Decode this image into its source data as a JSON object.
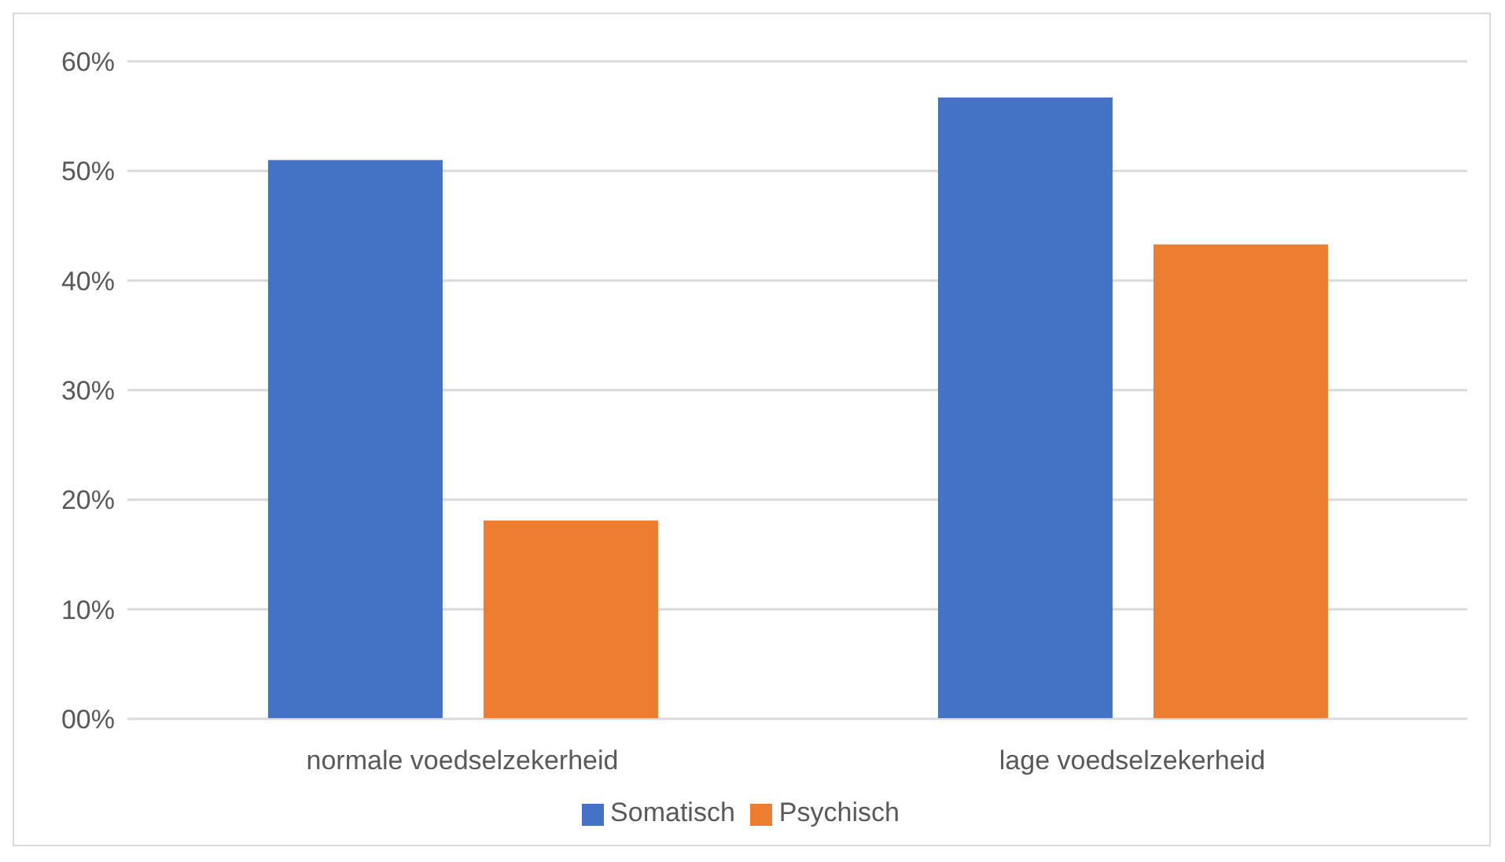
{
  "chart_data": {
    "type": "bar",
    "categories": [
      "normale voedselzekerheid",
      "lage voedselzekerheid"
    ],
    "series": [
      {
        "name": "Somatisch",
        "color": "#4472c4",
        "values": [
          51.0,
          56.7
        ]
      },
      {
        "name": "Psychisch",
        "color": "#ed7d31",
        "values": [
          18.1,
          43.3
        ]
      }
    ],
    "ylim": [
      0,
      60
    ],
    "yticks": [
      {
        "value": 0,
        "label": "00%"
      },
      {
        "value": 10,
        "label": "10%"
      },
      {
        "value": 20,
        "label": "20%"
      },
      {
        "value": 30,
        "label": "30%"
      },
      {
        "value": 40,
        "label": "40%"
      },
      {
        "value": 50,
        "label": "50%"
      },
      {
        "value": 60,
        "label": "60%"
      }
    ],
    "grid": "y",
    "legend": "bottom"
  }
}
